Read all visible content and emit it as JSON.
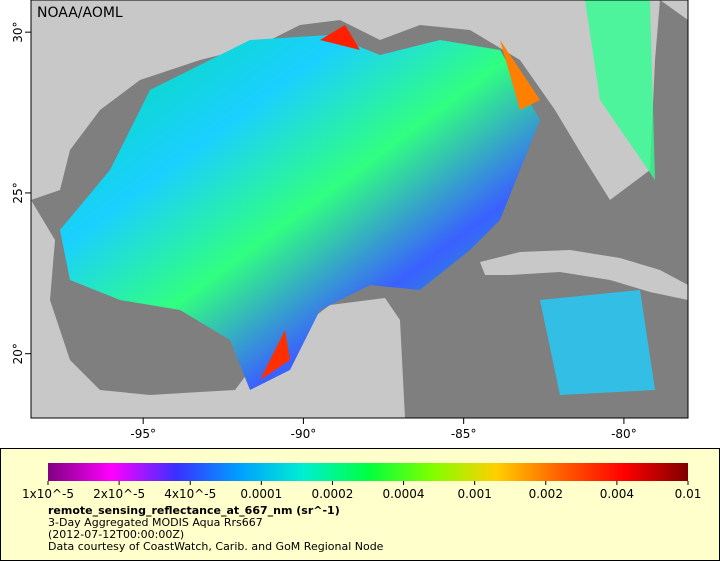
{
  "map": {
    "credit": "NOAA/AOML",
    "xlim": [
      -98.5,
      -78
    ],
    "ylim": [
      18,
      31
    ],
    "lon_ticks": [
      {
        "value": -95,
        "label": "-95°"
      },
      {
        "value": -90,
        "label": "-90°"
      },
      {
        "value": -85,
        "label": "-85°"
      },
      {
        "value": -80,
        "label": "-80°"
      }
    ],
    "lat_ticks": [
      {
        "value": 20,
        "label": "20°"
      },
      {
        "value": 25,
        "label": "25°"
      },
      {
        "value": 30,
        "label": "30°"
      }
    ]
  },
  "colorbar": {
    "scale": "log",
    "colors": [
      "#800080",
      "#ff00ff",
      "#3a30ff",
      "#00a0ff",
      "#00f0d0",
      "#00ff40",
      "#80ff00",
      "#ffd000",
      "#ff6000",
      "#ff0000",
      "#800000"
    ],
    "ticks": [
      {
        "value": 1e-05,
        "label": "1x10^-5"
      },
      {
        "value": 2e-05,
        "label": "2x10^-5"
      },
      {
        "value": 4e-05,
        "label": "4x10^-5"
      },
      {
        "value": 0.0001,
        "label": "0.0001"
      },
      {
        "value": 0.0002,
        "label": "0.0002"
      },
      {
        "value": 0.0004,
        "label": "0.0004"
      },
      {
        "value": 0.001,
        "label": "0.001"
      },
      {
        "value": 0.002,
        "label": "0.002"
      },
      {
        "value": 0.004,
        "label": "0.004"
      },
      0.01
    ]
  },
  "caption": {
    "variable": "remote_sensing_reflectance_at_667_nm (sr^-1)",
    "lines": [
      "3-Day Aggregated MODIS Aqua Rrs667",
      "(2012-07-12T00:00:00Z)",
      "Data courtesy of CoastWatch, Carib. and GoM Regional Node"
    ]
  }
}
